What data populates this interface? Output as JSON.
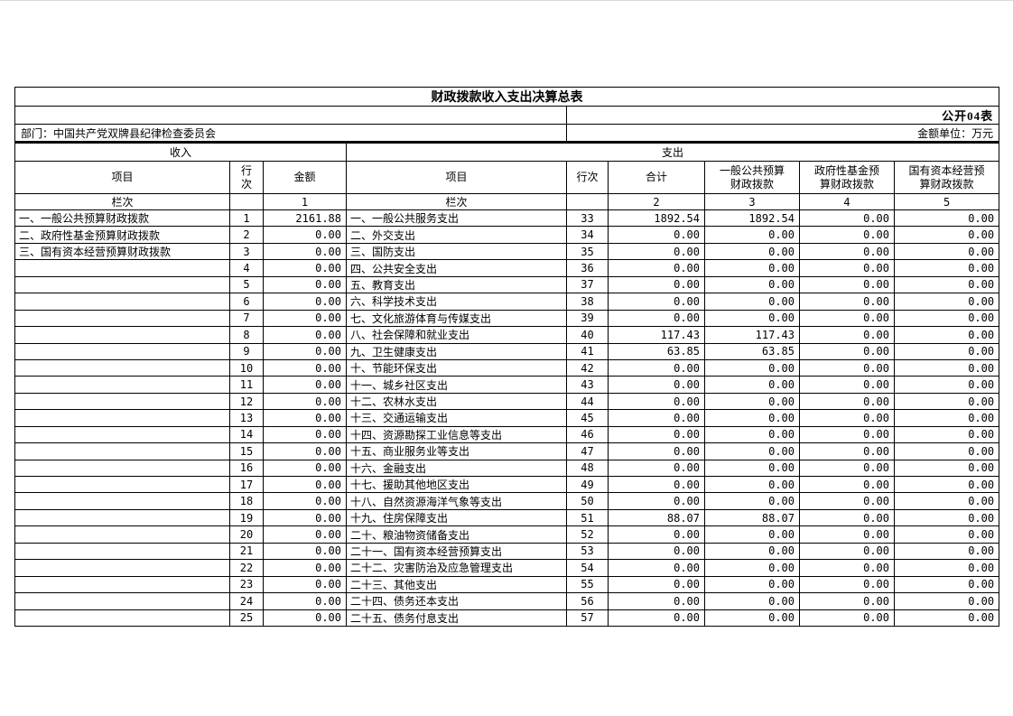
{
  "page": {
    "title": "财政拨款收入支出决算总表",
    "table_code": "公开04表",
    "department": "部门：中国共产党双牌县纪律检查委员会",
    "unit": "金额单位：万元"
  },
  "table": {
    "sections": {
      "income": "收入",
      "expenditure": "支出"
    },
    "headers": {
      "item": "项目",
      "line": "行次",
      "amount": "金额",
      "total": "合计",
      "general_budget": "一般公共预算财政拨款",
      "gov_fund_budget": "政府性基金预算财政拨款",
      "state_capital_budget": "国有资本经营预算财政拨款"
    },
    "index_row": {
      "label": "栏次",
      "c1": "1",
      "c2": "2",
      "c3": "3",
      "c4": "4",
      "c5": "5"
    },
    "rows": [
      {
        "in_item": "一、一般公共预算财政拨款",
        "in_line": "1",
        "in_amt": "2161.88",
        "ex_item": "一、一般公共服务支出",
        "ex_line": "33",
        "ex_total": "1892.54",
        "ex_gen": "1892.54",
        "ex_fund": "0.00",
        "ex_cap": "0.00"
      },
      {
        "in_item": "二、政府性基金预算财政拨款",
        "in_line": "2",
        "in_amt": "0.00",
        "ex_item": "二、外交支出",
        "ex_line": "34",
        "ex_total": "0.00",
        "ex_gen": "0.00",
        "ex_fund": "0.00",
        "ex_cap": "0.00"
      },
      {
        "in_item": "三、国有资本经营预算财政拨款",
        "in_line": "3",
        "in_amt": "0.00",
        "ex_item": "三、国防支出",
        "ex_line": "35",
        "ex_total": "0.00",
        "ex_gen": "0.00",
        "ex_fund": "0.00",
        "ex_cap": "0.00"
      },
      {
        "in_item": "",
        "in_line": "4",
        "in_amt": "0.00",
        "ex_item": "四、公共安全支出",
        "ex_line": "36",
        "ex_total": "0.00",
        "ex_gen": "0.00",
        "ex_fund": "0.00",
        "ex_cap": "0.00"
      },
      {
        "in_item": "",
        "in_line": "5",
        "in_amt": "0.00",
        "ex_item": "五、教育支出",
        "ex_line": "37",
        "ex_total": "0.00",
        "ex_gen": "0.00",
        "ex_fund": "0.00",
        "ex_cap": "0.00"
      },
      {
        "in_item": "",
        "in_line": "6",
        "in_amt": "0.00",
        "ex_item": "六、科学技术支出",
        "ex_line": "38",
        "ex_total": "0.00",
        "ex_gen": "0.00",
        "ex_fund": "0.00",
        "ex_cap": "0.00"
      },
      {
        "in_item": "",
        "in_line": "7",
        "in_amt": "0.00",
        "ex_item": "七、文化旅游体育与传媒支出",
        "ex_line": "39",
        "ex_total": "0.00",
        "ex_gen": "0.00",
        "ex_fund": "0.00",
        "ex_cap": "0.00"
      },
      {
        "in_item": "",
        "in_line": "8",
        "in_amt": "0.00",
        "ex_item": "八、社会保障和就业支出",
        "ex_line": "40",
        "ex_total": "117.43",
        "ex_gen": "117.43",
        "ex_fund": "0.00",
        "ex_cap": "0.00"
      },
      {
        "in_item": "",
        "in_line": "9",
        "in_amt": "0.00",
        "ex_item": "九、卫生健康支出",
        "ex_line": "41",
        "ex_total": "63.85",
        "ex_gen": "63.85",
        "ex_fund": "0.00",
        "ex_cap": "0.00"
      },
      {
        "in_item": "",
        "in_line": "10",
        "in_amt": "0.00",
        "ex_item": "十、节能环保支出",
        "ex_line": "42",
        "ex_total": "0.00",
        "ex_gen": "0.00",
        "ex_fund": "0.00",
        "ex_cap": "0.00"
      },
      {
        "in_item": "",
        "in_line": "11",
        "in_amt": "0.00",
        "ex_item": "十一、城乡社区支出",
        "ex_line": "43",
        "ex_total": "0.00",
        "ex_gen": "0.00",
        "ex_fund": "0.00",
        "ex_cap": "0.00"
      },
      {
        "in_item": "",
        "in_line": "12",
        "in_amt": "0.00",
        "ex_item": "十二、农林水支出",
        "ex_line": "44",
        "ex_total": "0.00",
        "ex_gen": "0.00",
        "ex_fund": "0.00",
        "ex_cap": "0.00"
      },
      {
        "in_item": "",
        "in_line": "13",
        "in_amt": "0.00",
        "ex_item": "十三、交通运输支出",
        "ex_line": "45",
        "ex_total": "0.00",
        "ex_gen": "0.00",
        "ex_fund": "0.00",
        "ex_cap": "0.00"
      },
      {
        "in_item": "",
        "in_line": "14",
        "in_amt": "0.00",
        "ex_item": "十四、资源勘探工业信息等支出",
        "ex_line": "46",
        "ex_total": "0.00",
        "ex_gen": "0.00",
        "ex_fund": "0.00",
        "ex_cap": "0.00"
      },
      {
        "in_item": "",
        "in_line": "15",
        "in_amt": "0.00",
        "ex_item": "十五、商业服务业等支出",
        "ex_line": "47",
        "ex_total": "0.00",
        "ex_gen": "0.00",
        "ex_fund": "0.00",
        "ex_cap": "0.00"
      },
      {
        "in_item": "",
        "in_line": "16",
        "in_amt": "0.00",
        "ex_item": "十六、金融支出",
        "ex_line": "48",
        "ex_total": "0.00",
        "ex_gen": "0.00",
        "ex_fund": "0.00",
        "ex_cap": "0.00"
      },
      {
        "in_item": "",
        "in_line": "17",
        "in_amt": "0.00",
        "ex_item": "十七、援助其他地区支出",
        "ex_line": "49",
        "ex_total": "0.00",
        "ex_gen": "0.00",
        "ex_fund": "0.00",
        "ex_cap": "0.00"
      },
      {
        "in_item": "",
        "in_line": "18",
        "in_amt": "0.00",
        "ex_item": "十八、自然资源海洋气象等支出",
        "ex_line": "50",
        "ex_total": "0.00",
        "ex_gen": "0.00",
        "ex_fund": "0.00",
        "ex_cap": "0.00"
      },
      {
        "in_item": "",
        "in_line": "19",
        "in_amt": "0.00",
        "ex_item": "十九、住房保障支出",
        "ex_line": "51",
        "ex_total": "88.07",
        "ex_gen": "88.07",
        "ex_fund": "0.00",
        "ex_cap": "0.00"
      },
      {
        "in_item": "",
        "in_line": "20",
        "in_amt": "0.00",
        "ex_item": "二十、粮油物资储备支出",
        "ex_line": "52",
        "ex_total": "0.00",
        "ex_gen": "0.00",
        "ex_fund": "0.00",
        "ex_cap": "0.00"
      },
      {
        "in_item": "",
        "in_line": "21",
        "in_amt": "0.00",
        "ex_item": "二十一、国有资本经营预算支出",
        "ex_line": "53",
        "ex_total": "0.00",
        "ex_gen": "0.00",
        "ex_fund": "0.00",
        "ex_cap": "0.00"
      },
      {
        "in_item": "",
        "in_line": "22",
        "in_amt": "0.00",
        "ex_item": "二十二、灾害防治及应急管理支出",
        "ex_line": "54",
        "ex_total": "0.00",
        "ex_gen": "0.00",
        "ex_fund": "0.00",
        "ex_cap": "0.00"
      },
      {
        "in_item": "",
        "in_line": "23",
        "in_amt": "0.00",
        "ex_item": "二十三、其他支出",
        "ex_line": "55",
        "ex_total": "0.00",
        "ex_gen": "0.00",
        "ex_fund": "0.00",
        "ex_cap": "0.00"
      },
      {
        "in_item": "",
        "in_line": "24",
        "in_amt": "0.00",
        "ex_item": "二十四、债务还本支出",
        "ex_line": "56",
        "ex_total": "0.00",
        "ex_gen": "0.00",
        "ex_fund": "0.00",
        "ex_cap": "0.00"
      },
      {
        "in_item": "",
        "in_line": "25",
        "in_amt": "0.00",
        "ex_item": "二十五、债务付息支出",
        "ex_line": "57",
        "ex_total": "0.00",
        "ex_gen": "0.00",
        "ex_fund": "0.00",
        "ex_cap": "0.00"
      }
    ]
  }
}
